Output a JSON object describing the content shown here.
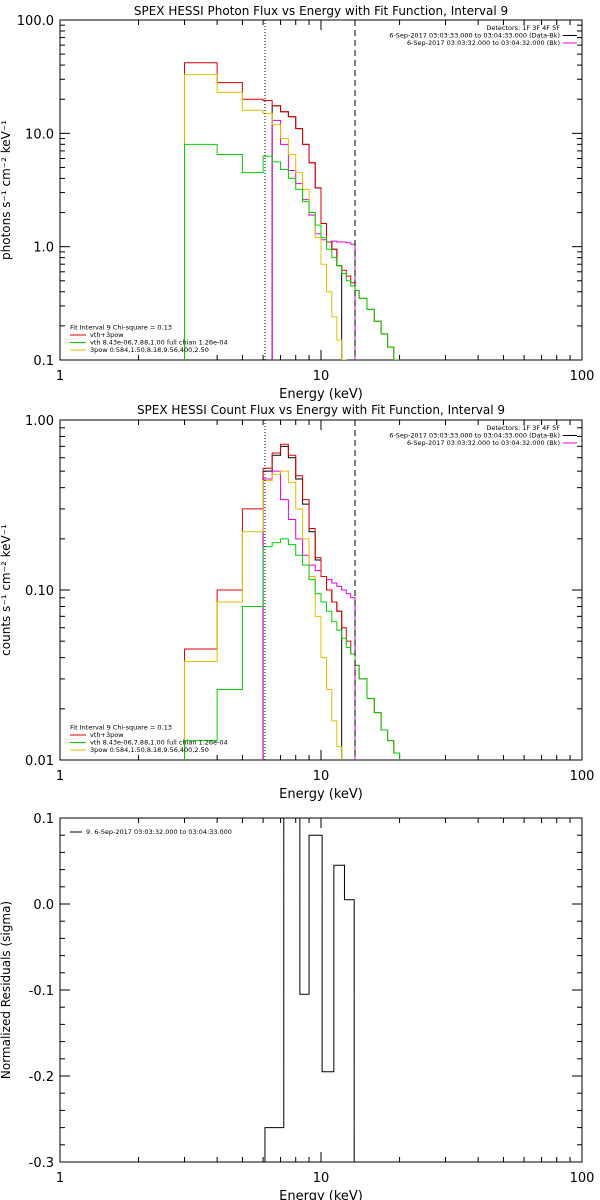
{
  "chart_data": [
    {
      "type": "line",
      "title": "SPEX HESSI Photon Flux vs Energy with Fit Function, Interval 9",
      "xlabel": "Energy (keV)",
      "ylabel": "photons s⁻¹ cm⁻² keV⁻¹",
      "xscale": "log",
      "yscale": "log",
      "xlim": [
        1,
        100
      ],
      "ylim": [
        0.1,
        100
      ],
      "xtick_labels": [
        "1",
        "10",
        "100"
      ],
      "ytick_values": [
        0.1,
        1,
        10,
        100
      ],
      "ytick_labels": [
        "0.1",
        "1.0",
        "10.0",
        "100.0"
      ],
      "vlines": [
        {
          "x": 6.1,
          "style": "dotted",
          "color": "#000000"
        },
        {
          "x": 13.5,
          "style": "dashed",
          "color": "#000000"
        }
      ],
      "legend_topright": {
        "lines": [
          "Detectors: 1F 3F 4F 5F",
          "6-Sep-2017 03:03:33.000 to 03:04:33.000 (Data-Bk)",
          "6-Sep-2017 03:03:32.000 to 03:04:32.000 (Bk)"
        ],
        "colors": [
          "",
          "#000000",
          "#e000e0"
        ]
      },
      "legend_bottomleft": {
        "lines": [
          "Fit Interval 9   Chi-square = 0.13",
          "vth+3pow",
          "vth 8.43e-06,7.88,1.00  full chian 1.26e-04",
          "3pow 0.584,1.50,8.18,9.56,400,2.50"
        ],
        "colors": [
          "",
          "#e00000",
          "#00d000",
          "#e0c000"
        ]
      },
      "edges": [
        3,
        4,
        5,
        6,
        6.5,
        7,
        7.5,
        8,
        8.5,
        9,
        9.5,
        10,
        10.5,
        11,
        11.5,
        12,
        12.5,
        13,
        13.5,
        14,
        15,
        16,
        17,
        18,
        19,
        20,
        22
      ],
      "series": [
        {
          "color": "#000000",
          "values": [
            null,
            null,
            null,
            null,
            17.5,
            15.5,
            14,
            11,
            8,
            5.5,
            3.3,
            1.6,
            1.1,
            0.95,
            0.68,
            null,
            null,
            null,
            null,
            null,
            null,
            null,
            null,
            null,
            null,
            null
          ]
        },
        {
          "color": "#e000e0",
          "values": [
            null,
            null,
            null,
            null,
            13,
            8,
            4.7,
            3.6,
            2.6,
            1.9,
            1.3,
            1.15,
            1.1,
            1.12,
            1.1,
            1.1,
            1.08,
            1.05,
            null,
            null,
            null,
            null,
            null,
            null,
            null,
            null
          ]
        },
        {
          "color": "#e00000",
          "values": [
            42,
            28,
            20,
            19.5,
            17.5,
            15.5,
            14,
            11,
            8,
            5.5,
            3.3,
            1.6,
            1.1,
            0.95,
            0.68,
            0.62,
            0.55,
            0.48,
            0.41,
            0.35,
            0.28,
            0.22,
            0.17,
            0.13,
            0.1,
            null
          ]
        },
        {
          "color": "#e0c000",
          "values": [
            33,
            23,
            16,
            15,
            12,
            9,
            6.5,
            4.5,
            3.2,
            2,
            1.2,
            0.7,
            0.4,
            0.24,
            0.15,
            0.1,
            null,
            null,
            null,
            null,
            null,
            null,
            null,
            null,
            null,
            null
          ]
        },
        {
          "color": "#00d000",
          "values": [
            8,
            6.5,
            4.5,
            6.3,
            5.6,
            4.8,
            4,
            3.2,
            2.5,
            2,
            1.55,
            1.2,
            0.95,
            0.8,
            0.68,
            0.58,
            0.5,
            0.45,
            0.41,
            0.35,
            0.28,
            0.22,
            0.17,
            0.13,
            0.1,
            null
          ]
        }
      ]
    },
    {
      "type": "line",
      "title": "SPEX HESSI Count Flux vs Energy with Fit Function, Interval 9",
      "xlabel": "Energy (keV)",
      "ylabel": "counts s⁻¹ cm⁻² keV⁻¹",
      "xscale": "log",
      "yscale": "log",
      "xlim": [
        1,
        100
      ],
      "ylim": [
        0.01,
        1
      ],
      "xtick_labels": [
        "1",
        "10",
        "100"
      ],
      "ytick_values": [
        0.01,
        0.1,
        1
      ],
      "ytick_labels": [
        "0.01",
        "0.10",
        "1.00"
      ],
      "vlines": [
        {
          "x": 6.1,
          "style": "dotted",
          "color": "#000000"
        },
        {
          "x": 13.5,
          "style": "dashed",
          "color": "#000000"
        }
      ],
      "legend_topright": {
        "lines": [
          "Detectors: 1F 3F 4F 5F",
          "6-Sep-2017 03:03:33.000 to 03:04:33.000 (Data-Bk)",
          "6-Sep-2017 03:03:32.000 to 03:04:32.000 (Bk)"
        ],
        "colors": [
          "",
          "#000000",
          "#e000e0"
        ]
      },
      "legend_bottomleft": {
        "lines": [
          "Fit Interval 9   Chi-square = 0.13",
          "vth+3pow",
          "vth 8.43e-06,7.88,1.00  full chian 1.26e-04",
          "3pow 0.584,1.50,8.18,9.56,400,2.50"
        ],
        "colors": [
          "",
          "#e00000",
          "#00d000",
          "#e0c000"
        ]
      },
      "edges": [
        3,
        4,
        5,
        6,
        6.5,
        7,
        7.5,
        8,
        8.5,
        9,
        9.5,
        10,
        10.5,
        11,
        11.5,
        12,
        12.5,
        13,
        13.5,
        14,
        15,
        16,
        17,
        18,
        19,
        20,
        22
      ],
      "series": [
        {
          "color": "#000000",
          "values": [
            null,
            null,
            null,
            0.5,
            0.62,
            0.7,
            0.6,
            0.45,
            0.32,
            0.22,
            0.15,
            0.12,
            0.1,
            0.085,
            0.075,
            null,
            null,
            null,
            null,
            null,
            null,
            null,
            null,
            null,
            null,
            null
          ]
        },
        {
          "color": "#e000e0",
          "values": [
            null,
            null,
            null,
            0.45,
            0.5,
            0.34,
            0.26,
            0.2,
            0.16,
            0.14,
            0.13,
            0.12,
            0.115,
            0.11,
            0.105,
            0.1,
            0.095,
            0.09,
            null,
            null,
            null,
            null,
            null,
            null,
            null,
            null
          ]
        },
        {
          "color": "#e00000",
          "values": [
            0.045,
            0.1,
            0.3,
            0.52,
            0.64,
            0.72,
            0.62,
            0.47,
            0.34,
            0.23,
            0.155,
            0.12,
            0.1,
            0.085,
            0.075,
            0.06,
            0.05,
            0.042,
            0.036,
            0.03,
            0.023,
            0.019,
            0.015,
            0.013,
            0.011,
            null
          ]
        },
        {
          "color": "#e0c000",
          "values": [
            0.038,
            0.085,
            0.22,
            0.44,
            0.48,
            0.5,
            0.43,
            0.3,
            0.2,
            0.12,
            0.07,
            0.04,
            0.026,
            0.017,
            0.012,
            null,
            null,
            null,
            null,
            null,
            null,
            null,
            null,
            null,
            null,
            null
          ]
        },
        {
          "color": "#00d000",
          "values": [
            0.013,
            0.026,
            0.08,
            0.18,
            0.19,
            0.2,
            0.185,
            0.16,
            0.14,
            0.115,
            0.095,
            0.085,
            0.075,
            0.065,
            0.058,
            0.052,
            0.046,
            0.042,
            0.036,
            0.03,
            0.023,
            0.019,
            0.015,
            0.013,
            0.011,
            null
          ]
        }
      ]
    },
    {
      "type": "line",
      "title": "",
      "xlabel": "Energy (keV)",
      "ylabel": "Normalized Residuals (sigma)",
      "xscale": "log",
      "yscale": "linear",
      "xlim": [
        1,
        100
      ],
      "ylim": [
        -0.3,
        0.1
      ],
      "xtick_labels": [
        "1",
        "10",
        "100"
      ],
      "ytick_values": [
        -0.3,
        -0.2,
        -0.1,
        0,
        0.1
      ],
      "ytick_labels": [
        "-0.3",
        "-0.2",
        "-0.1",
        "0.0",
        "0.1"
      ],
      "legend_topleft": {
        "lines": [
          "9.  6-Sep-2017 03:03:32.000 to 03:04:33.000"
        ],
        "colors": [
          "#000000"
        ]
      },
      "edges": [
        6.1,
        7.2,
        8.3,
        9.0,
        10.1,
        11.2,
        12.3,
        13.4
      ],
      "series": [
        {
          "color": "#000000",
          "values": [
            -0.26,
            0.1,
            -0.105,
            0.08,
            -0.195,
            0.045,
            0.005
          ]
        }
      ]
    }
  ]
}
